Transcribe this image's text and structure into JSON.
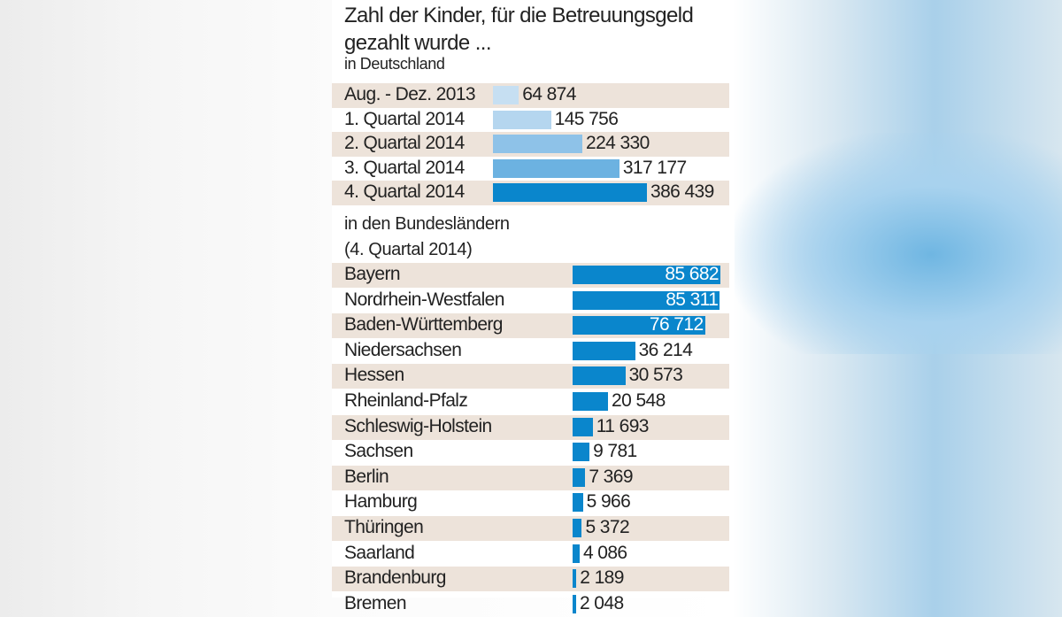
{
  "chart_data": [
    {
      "type": "bar",
      "orientation": "horizontal",
      "title": "Zahl der Kinder, für die Betreuungsgeld gezahlt wurde ...",
      "subtitle": "in Deutschland",
      "categories": [
        "Aug. - Dez. 2013",
        "1. Quartal 2014",
        "2. Quartal 2014",
        "3. Quartal 2014",
        "4. Quartal 2014"
      ],
      "values": [
        64874,
        145756,
        224330,
        317177,
        386439
      ],
      "labels": [
        "64 874",
        "145 756",
        "224 330",
        "317 177",
        "386 439"
      ],
      "colors": [
        "#c6dff2",
        "#b5d6ef",
        "#8ec2e8",
        "#6cb2e1",
        "#0a86cc"
      ],
      "stripe_color": "#ede3da"
    },
    {
      "type": "bar",
      "orientation": "horizontal",
      "subtitle": [
        "in den Bundesländern",
        "(4. Quartal 2014)"
      ],
      "categories": [
        "Bayern",
        "Nordrhein-Westfalen",
        "Baden-Württemberg",
        "Niedersachsen",
        "Hessen",
        "Rheinland-Pfalz",
        "Schleswig-Holstein",
        "Sachsen",
        "Berlin",
        "Hamburg",
        "Thüringen",
        "Saarland",
        "Brandenburg",
        "Bremen"
      ],
      "values": [
        85682,
        85311,
        76712,
        36214,
        30573,
        20548,
        11693,
        9781,
        7369,
        5966,
        5372,
        4086,
        2189,
        2048
      ],
      "labels": [
        "85 682",
        "85 311",
        "76 712",
        "36 214",
        "30 573",
        "20 548",
        "11 693",
        "9 781",
        "7 369",
        "5 966",
        "5 372",
        "4 086",
        "2 189",
        "2 048"
      ],
      "color": "#0a86cc",
      "stripe_color": "#ede3da"
    }
  ]
}
